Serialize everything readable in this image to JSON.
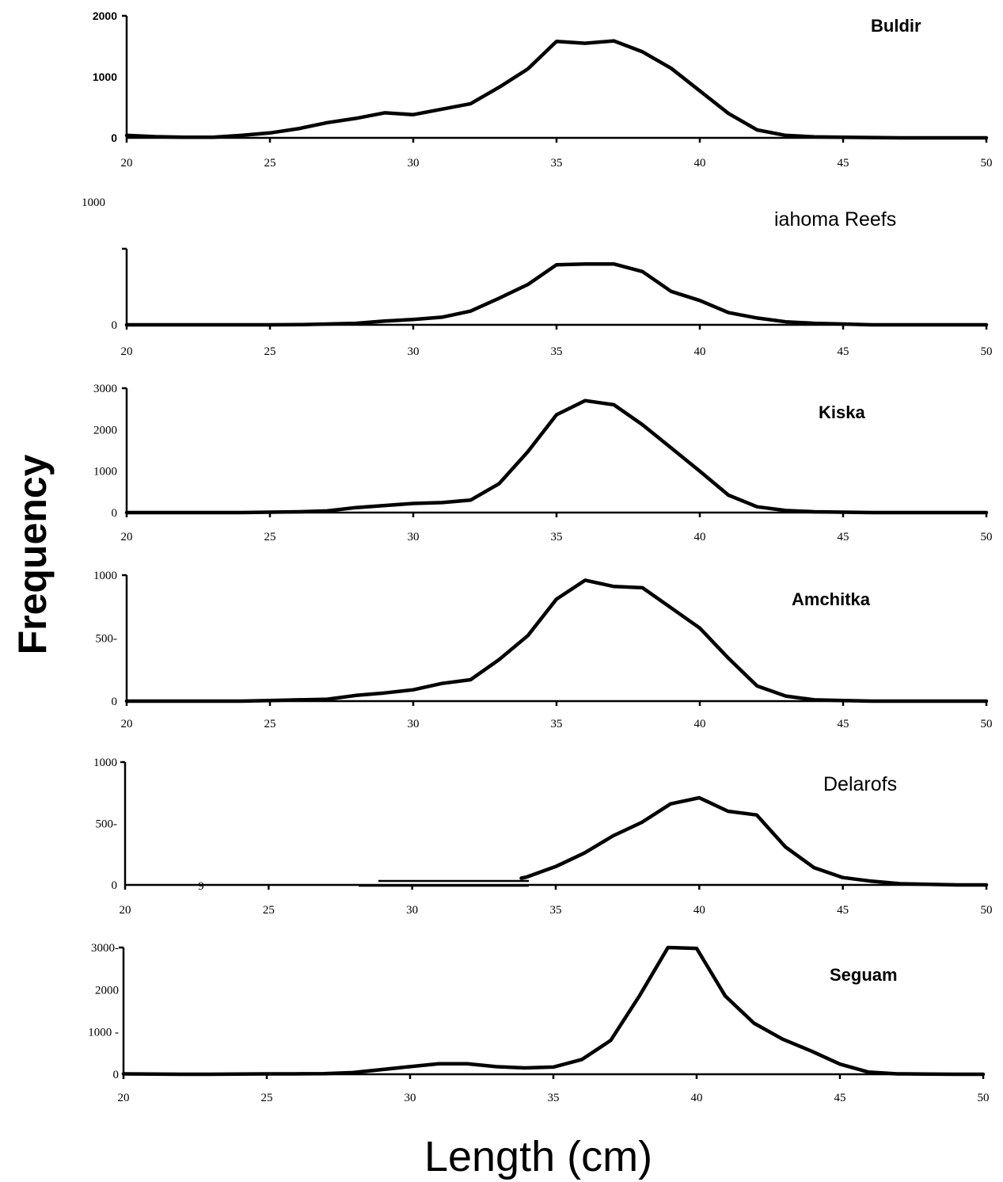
{
  "chart_data": [
    {
      "type": "line",
      "title": "Buldir",
      "x": [
        20,
        21,
        22,
        23,
        24,
        25,
        26,
        27,
        28,
        29,
        30,
        31,
        32,
        33,
        34,
        35,
        36,
        37,
        38,
        39,
        40,
        41,
        42,
        43,
        44,
        45,
        46,
        47,
        48,
        49,
        50
      ],
      "values": [
        40,
        20,
        10,
        10,
        40,
        80,
        150,
        250,
        320,
        410,
        380,
        470,
        560,
        830,
        1130,
        1580,
        1550,
        1590,
        1410,
        1140,
        770,
        400,
        130,
        40,
        15,
        10,
        5,
        0,
        0,
        0,
        0
      ],
      "ylim": [
        0,
        2000
      ],
      "yticks": [
        "0",
        "1000",
        "2000"
      ],
      "xticks": [
        "20",
        "25",
        "30",
        "35",
        "40",
        "45",
        "50"
      ],
      "xlim": [
        20,
        50
      ]
    },
    {
      "type": "line",
      "title": "iahoma  Reefs",
      "x": [
        20,
        21,
        22,
        23,
        24,
        25,
        26,
        27,
        28,
        29,
        30,
        31,
        32,
        33,
        34,
        35,
        36,
        37,
        38,
        39,
        40,
        41,
        42,
        43,
        44,
        45,
        46,
        47,
        48,
        49,
        50
      ],
      "values": [
        0,
        0,
        0,
        0,
        0,
        0,
        2,
        10,
        20,
        50,
        70,
        100,
        180,
        350,
        530,
        790,
        800,
        800,
        700,
        440,
        320,
        160,
        90,
        40,
        20,
        10,
        0,
        0,
        0,
        0,
        0
      ],
      "ylim": [
        0,
        1000
      ],
      "yticks": [
        "0",
        "1000"
      ],
      "xticks": [
        "20",
        "25",
        "30",
        "35",
        "40",
        "45",
        "50"
      ],
      "xlim": [
        20,
        50
      ]
    },
    {
      "type": "line",
      "title": "Kiska",
      "x": [
        20,
        21,
        22,
        23,
        24,
        25,
        26,
        27,
        28,
        29,
        30,
        31,
        32,
        33,
        34,
        35,
        36,
        37,
        38,
        39,
        40,
        41,
        42,
        43,
        44,
        45,
        46,
        47,
        48,
        49,
        50
      ],
      "values": [
        0,
        0,
        0,
        0,
        0,
        10,
        20,
        40,
        120,
        170,
        220,
        240,
        300,
        700,
        1470,
        2360,
        2700,
        2600,
        2120,
        1560,
        1000,
        420,
        140,
        50,
        20,
        10,
        0,
        0,
        0,
        0,
        0
      ],
      "ylim": [
        0,
        3000
      ],
      "yticks": [
        "0",
        "1000",
        "2000",
        "3000"
      ],
      "xticks": [
        "20",
        "25",
        "30",
        "35",
        "40",
        "45",
        "50"
      ],
      "xlim": [
        20,
        50
      ]
    },
    {
      "type": "line",
      "title": "Amchitka",
      "x": [
        20,
        21,
        22,
        23,
        24,
        25,
        26,
        27,
        28,
        29,
        30,
        31,
        32,
        33,
        34,
        35,
        36,
        37,
        38,
        39,
        40,
        41,
        42,
        43,
        44,
        45,
        46,
        47,
        48,
        49,
        50
      ],
      "values": [
        0,
        0,
        0,
        0,
        0,
        5,
        10,
        15,
        45,
        65,
        90,
        140,
        170,
        330,
        520,
        810,
        960,
        910,
        900,
        740,
        580,
        340,
        120,
        40,
        10,
        5,
        0,
        0,
        0,
        0,
        0
      ],
      "ylim": [
        0,
        1000
      ],
      "yticks": [
        "0",
        "500-",
        "1000"
      ],
      "xticks": [
        "20",
        "25",
        "30",
        "35",
        "40",
        "45",
        "50"
      ],
      "xlim": [
        20,
        50
      ]
    },
    {
      "type": "line",
      "title": "Delarofs",
      "x": [
        33.8,
        34,
        35,
        36,
        37,
        38,
        39,
        40,
        41,
        42,
        43,
        44,
        45,
        46,
        47,
        48,
        49,
        50
      ],
      "values": [
        55,
        65,
        150,
        260,
        400,
        510,
        660,
        710,
        600,
        570,
        310,
        140,
        60,
        30,
        10,
        5,
        0,
        0
      ],
      "ylim": [
        0,
        1000
      ],
      "yticks": [
        "0",
        "500-",
        "1000"
      ],
      "xticks": [
        "20",
        "25",
        "30",
        "35",
        "40",
        "45",
        "50"
      ],
      "xlim": [
        20,
        50
      ],
      "annotation": "9"
    },
    {
      "type": "line",
      "title": "Seguam",
      "x": [
        20,
        21,
        22,
        23,
        24,
        25,
        26,
        27,
        28,
        29,
        30,
        31,
        32,
        33,
        34,
        35,
        36,
        37,
        38,
        39,
        40,
        41,
        42,
        43,
        44,
        45,
        46,
        47,
        48,
        49,
        50
      ],
      "values": [
        10,
        5,
        0,
        0,
        5,
        10,
        10,
        15,
        40,
        110,
        180,
        250,
        250,
        180,
        150,
        170,
        350,
        800,
        1850,
        3000,
        2980,
        1850,
        1210,
        830,
        550,
        240,
        50,
        10,
        5,
        0,
        0
      ],
      "ylim": [
        0,
        3000
      ],
      "yticks": [
        "0",
        "1000 -",
        "2000",
        "3000-"
      ],
      "xticks": [
        "20",
        "25",
        "30",
        "35",
        "40",
        "45",
        "50"
      ],
      "xlim": [
        20,
        50
      ]
    }
  ],
  "ylabel": "Frequency",
  "xlabel": "Length (cm)"
}
